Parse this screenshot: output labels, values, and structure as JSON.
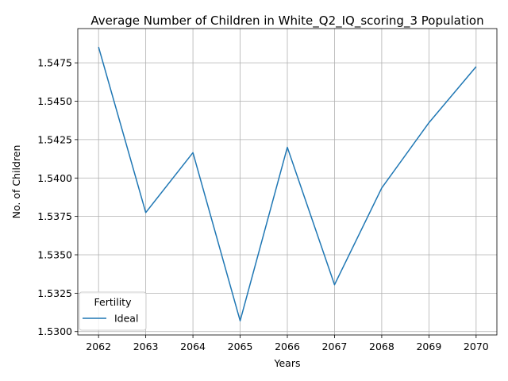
{
  "chart_data": {
    "type": "line",
    "title": "Average Number of Children in White_Q2_IQ_scoring_3 Population",
    "xlabel": "Years",
    "ylabel": "No. of Children",
    "x": [
      2062,
      2063,
      2064,
      2065,
      2066,
      2067,
      2068,
      2069,
      2070
    ],
    "xticks": [
      "2062",
      "2063",
      "2064",
      "2065",
      "2066",
      "2067",
      "2068",
      "2069",
      "2070"
    ],
    "yticks": [
      "1.5300",
      "1.5325",
      "1.5350",
      "1.5375",
      "1.5400",
      "1.5425",
      "1.5450",
      "1.5475"
    ],
    "ytick_values": [
      1.53,
      1.5325,
      1.535,
      1.5375,
      1.54,
      1.5425,
      1.545,
      1.5475
    ],
    "xlim": [
      2061.56,
      2070.44
    ],
    "ylim": [
      1.52978,
      1.54973
    ],
    "grid": true,
    "legend": {
      "title": "Fertility",
      "position": "lower-left"
    },
    "series": [
      {
        "name": "Ideal",
        "color": "#1f77b4",
        "values": [
          1.54853,
          1.53775,
          1.54165,
          1.5307,
          1.542,
          1.53305,
          1.53935,
          1.5436,
          1.54725
        ]
      }
    ]
  }
}
